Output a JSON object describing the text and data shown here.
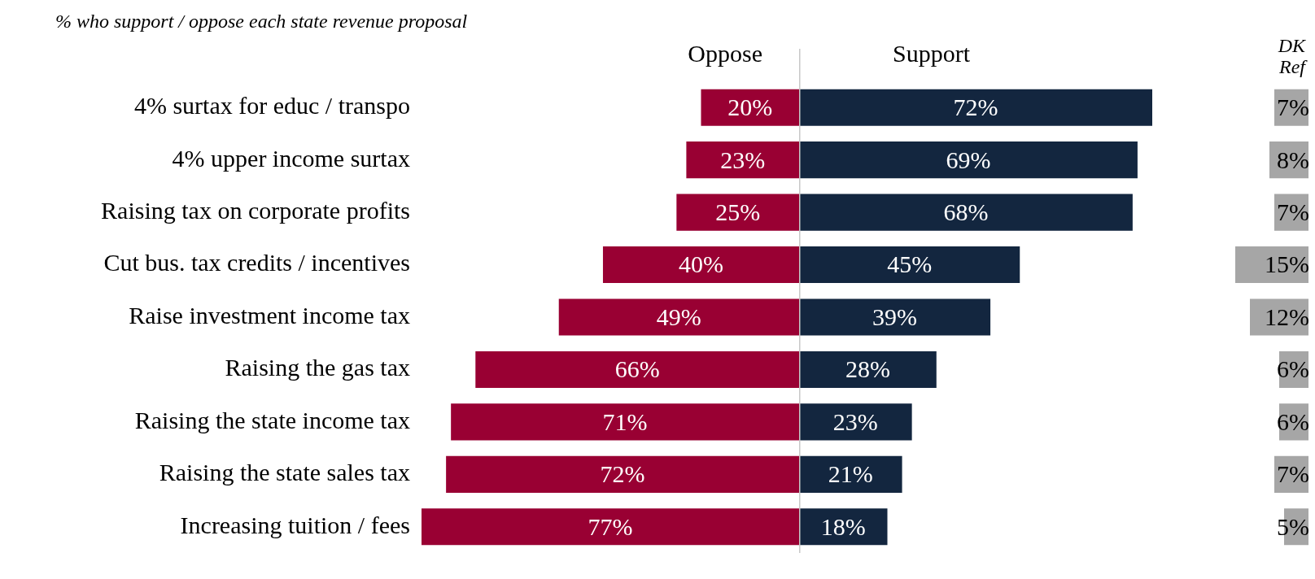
{
  "chart_data": [
    {
      "type": "bar",
      "orientation": "horizontal",
      "title": "% who support / oppose each state revenue proposal",
      "categories": [
        "4% surtax for educ / transpo",
        "4% upper income surtax",
        "Raising tax on corporate profits",
        "Cut bus. tax credits / incentives",
        "Raise investment income tax",
        "Raising the gas tax",
        "Raising the state income tax",
        "Raising the state sales tax",
        "Increasing tuition / fees"
      ],
      "series": [
        {
          "name": "Oppose",
          "color": "#990033",
          "values": [
            20,
            23,
            25,
            40,
            49,
            66,
            71,
            72,
            77
          ],
          "value_labels": [
            "20%",
            "23%",
            "25%",
            "40%",
            "49%",
            "66%",
            "71%",
            "72%",
            "77%"
          ]
        }
      ],
      "xlim": [
        77,
        0
      ],
      "tick_labels": "y",
      "grid": false,
      "legend": false
    },
    {
      "type": "bar",
      "orientation": "horizontal",
      "categories": [
        null,
        null,
        null,
        null,
        null,
        null,
        null,
        null,
        null
      ],
      "series": [
        {
          "name": "Support",
          "color": "#13263f",
          "values": [
            72,
            69,
            68,
            45,
            39,
            28,
            23,
            21,
            18
          ],
          "value_labels": [
            "72%",
            "69%",
            "68%",
            "45%",
            "39%",
            "28%",
            "23%",
            "21%",
            "18%"
          ]
        }
      ],
      "xlim": [
        0,
        72
      ],
      "tick_labels": false,
      "grid": false,
      "legend": false
    },
    {
      "type": "bar",
      "orientation": "horizontal",
      "title": "DK Ref",
      "categories": [
        null,
        null,
        null,
        null,
        null,
        null,
        null,
        null,
        null
      ],
      "series": [
        {
          "color": "#a6a6a6",
          "values": [
            7,
            8,
            7,
            15,
            12,
            6,
            6,
            7,
            5
          ],
          "value_labels": [
            "7%",
            "8%",
            "7%",
            "15%",
            "12%",
            "6%",
            "6%",
            "7%",
            "5%"
          ]
        }
      ],
      "xlim": [
        15,
        0
      ],
      "tick_labels": false,
      "grid": false,
      "legend": false
    }
  ]
}
